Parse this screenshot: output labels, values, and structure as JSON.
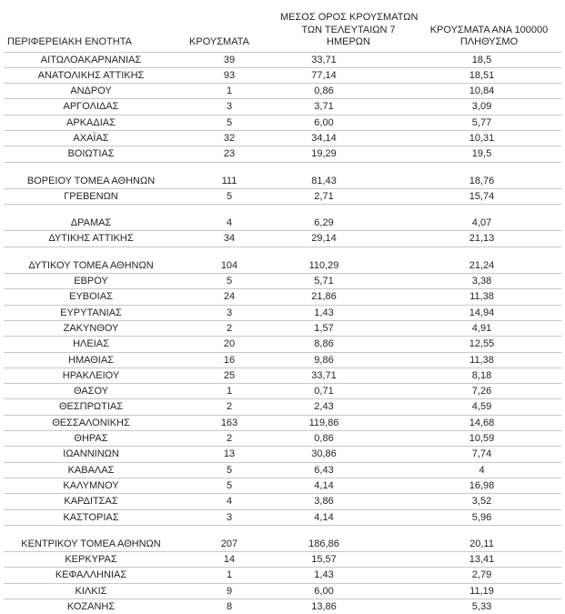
{
  "colors": {
    "background": "#ffffff",
    "text": "#262626",
    "grid_line": "#c8c8c8",
    "table_bottom_border": "#000000"
  },
  "table": {
    "headers": {
      "region": "ΠΕΡΙΦΕΡΕΙΑΚΗ ΕΝΟΤΗΤΑ",
      "cases": "ΚΡΟΥΣΜΑΤΑ",
      "avg7": "ΜΕΣΟΣ ΟΡΟΣ ΚΡΟΥΣΜΑΤΩΝ\nΤΩΝ ΤΕΛΕΥΤΑΙΩΝ 7\nΗΜΕΡΩΝ",
      "per100k": "ΚΡΟΥΣΜΑΤΑ ΑΝΑ 100000\nΠΛΗΘΥΣΜΟ"
    },
    "rows": [
      {
        "region": "ΑΙΤΩΛΟΑΚΑΡΝΑΝΙΑΣ",
        "cases": "39",
        "avg7": "33,71",
        "per100k": "18,5"
      },
      {
        "region": "ΑΝΑΤΟΛΙΚΗΣ ΑΤΤΙΚΗΣ",
        "cases": "93",
        "avg7": "77,14",
        "per100k": "18,51"
      },
      {
        "region": "ΑΝΔΡΟΥ",
        "cases": "1",
        "avg7": "0,86",
        "per100k": "10,84"
      },
      {
        "region": "ΑΡΓΟΛΙΔΑΣ",
        "cases": "3",
        "avg7": "3,71",
        "per100k": "3,09"
      },
      {
        "region": "ΑΡΚΑΔΙΑΣ",
        "cases": "5",
        "avg7": "6,00",
        "per100k": "5,77"
      },
      {
        "region": "ΑΧΑΪΑΣ",
        "cases": "32",
        "avg7": "34,14",
        "per100k": "10,31"
      },
      {
        "region": "ΒΟΙΩΤΙΑΣ",
        "cases": "23",
        "avg7": "19,29",
        "per100k": "19,5"
      },
      {
        "spacer": true
      },
      {
        "region": "ΒΟΡΕΙΟΥ ΤΟΜΕΑ ΑΘΗΝΩΝ",
        "cases": "111",
        "avg7": "81,43",
        "per100k": "18,76"
      },
      {
        "region": "ΓΡΕΒΕΝΩΝ",
        "cases": "5",
        "avg7": "2,71",
        "per100k": "15,74"
      },
      {
        "spacer": true
      },
      {
        "region": "ΔΡΑΜΑΣ",
        "cases": "4",
        "avg7": "6,29",
        "per100k": "4,07"
      },
      {
        "region": "ΔΥΤΙΚΗΣ ΑΤΤΙΚΗΣ",
        "cases": "34",
        "avg7": "29,14",
        "per100k": "21,13"
      },
      {
        "spacer": true
      },
      {
        "region": "ΔΥΤΙΚΟΥ ΤΟΜΕΑ ΑΘΗΝΩΝ",
        "cases": "104",
        "avg7": "110,29",
        "per100k": "21,24"
      },
      {
        "region": "ΕΒΡΟΥ",
        "cases": "5",
        "avg7": "5,71",
        "per100k": "3,38"
      },
      {
        "region": "ΕΥΒΟΙΑΣ",
        "cases": "24",
        "avg7": "21,86",
        "per100k": "11,38"
      },
      {
        "region": "ΕΥΡΥΤΑΝΙΑΣ",
        "cases": "3",
        "avg7": "1,43",
        "per100k": "14,94"
      },
      {
        "region": "ΖΑΚΥΝΘΟΥ",
        "cases": "2",
        "avg7": "1,57",
        "per100k": "4,91"
      },
      {
        "region": "ΗΛΕΙΑΣ",
        "cases": "20",
        "avg7": "8,86",
        "per100k": "12,55"
      },
      {
        "region": "ΗΜΑΘΙΑΣ",
        "cases": "16",
        "avg7": "9,86",
        "per100k": "11,38"
      },
      {
        "region": "ΗΡΑΚΛΕΙΟΥ",
        "cases": "25",
        "avg7": "33,71",
        "per100k": "8,18"
      },
      {
        "region": "ΘΑΣΟΥ",
        "cases": "1",
        "avg7": "0,71",
        "per100k": "7,26"
      },
      {
        "region": "ΘΕΣΠΡΩΤΙΑΣ",
        "cases": "2",
        "avg7": "2,43",
        "per100k": "4,59"
      },
      {
        "region": "ΘΕΣΣΑΛΟΝΙΚΗΣ",
        "cases": "163",
        "avg7": "119,86",
        "per100k": "14,68"
      },
      {
        "region": "ΘΗΡΑΣ",
        "cases": "2",
        "avg7": "0,86",
        "per100k": "10,59"
      },
      {
        "region": "ΙΩΑΝΝΙΝΩΝ",
        "cases": "13",
        "avg7": "30,86",
        "per100k": "7,74"
      },
      {
        "region": "ΚΑΒΑΛΑΣ",
        "cases": "5",
        "avg7": "6,43",
        "per100k": "4"
      },
      {
        "region": "ΚΑΛΥΜΝΟΥ",
        "cases": "5",
        "avg7": "4,14",
        "per100k": "16,98"
      },
      {
        "region": "ΚΑΡΔΙΤΣΑΣ",
        "cases": "4",
        "avg7": "3,86",
        "per100k": "3,52"
      },
      {
        "region": "ΚΑΣΤΟΡΙΑΣ",
        "cases": "3",
        "avg7": "4,14",
        "per100k": "5,96"
      },
      {
        "spacer": true
      },
      {
        "region": "ΚΕΝΤΡΙΚΟΥ ΤΟΜΕΑ ΑΘΗΝΩΝ",
        "cases": "207",
        "avg7": "186,86",
        "per100k": "20,11"
      },
      {
        "region": "ΚΕΡΚΥΡΑΣ",
        "cases": "14",
        "avg7": "15,57",
        "per100k": "13,41"
      },
      {
        "region": "ΚΕΦΑΛΛΗΝΙΑΣ",
        "cases": "1",
        "avg7": "1,43",
        "per100k": "2,79"
      },
      {
        "region": "ΚΙΛΚΙΣ",
        "cases": "9",
        "avg7": "6,00",
        "per100k": "11,19"
      },
      {
        "region": "ΚΟΖΑΝΗΣ",
        "cases": "8",
        "avg7": "13,86",
        "per100k": "5,33"
      }
    ]
  }
}
